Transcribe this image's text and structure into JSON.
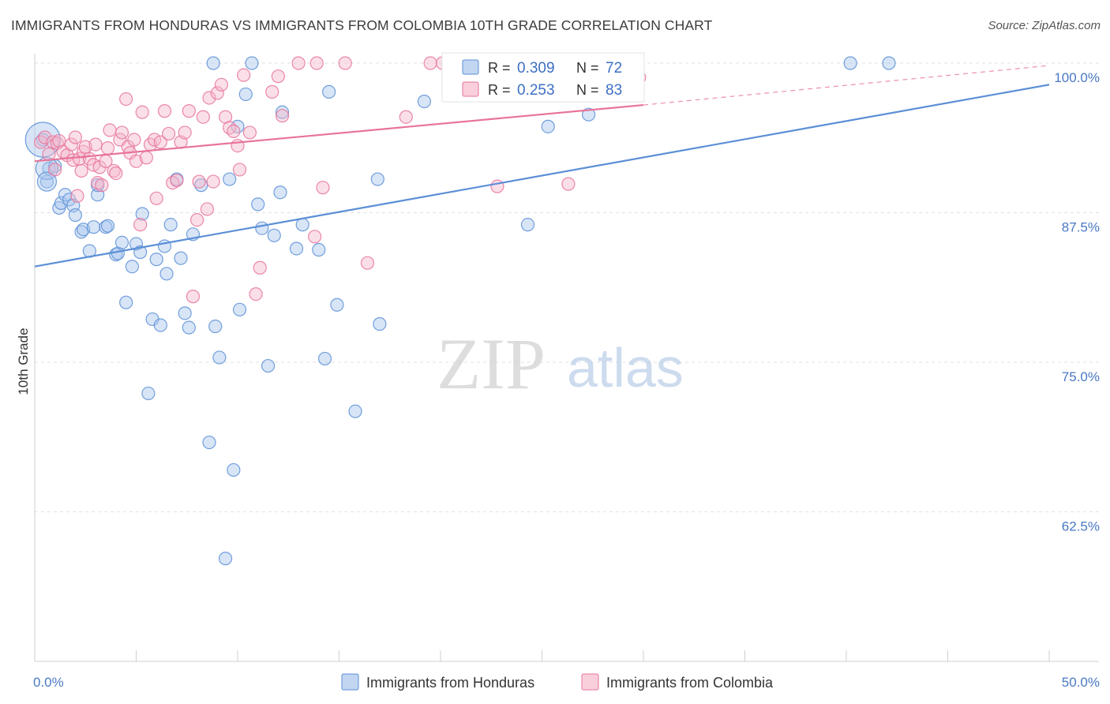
{
  "header": {
    "title": "IMMIGRANTS FROM HONDURAS VS IMMIGRANTS FROM COLOMBIA 10TH GRADE CORRELATION CHART",
    "source": "Source: ZipAtlas.com"
  },
  "watermark": {
    "zip": "ZIP",
    "atlas": "atlas"
  },
  "chart_data": {
    "type": "scatter",
    "title": "IMMIGRANTS FROM HONDURAS VS IMMIGRANTS FROM COLOMBIA 10TH GRADE CORRELATION CHART",
    "xlabel": "",
    "ylabel": "10th Grade",
    "xlim": [
      0,
      50
    ],
    "ylim": [
      50,
      100
    ],
    "x_ticks_labels": [
      "0.0%",
      "50.0%"
    ],
    "y_ticks": [
      62.5,
      75.0,
      87.5,
      100.0
    ],
    "y_tick_labels": [
      "62.5%",
      "75.0%",
      "87.5%",
      "100.0%"
    ],
    "grid": true,
    "legend_top": [
      {
        "r_label": "R = ",
        "r_value": "0.309",
        "n_label": "N = ",
        "n_value": "72",
        "color": "#5b8fd6"
      },
      {
        "r_label": "R = ",
        "r_value": "0.253",
        "n_label": "N = ",
        "n_value": "83",
        "color": "#e8739a"
      }
    ],
    "series": [
      {
        "name": "Immigrants from Honduras",
        "color": "#5b8fd6",
        "fill": "#a9c6ee",
        "trend": {
          "x0": 0,
          "y0": 83.0,
          "x1": 50,
          "y1": 98.2
        },
        "points": [
          [
            0.4,
            93.6
          ],
          [
            0.7,
            91.2
          ],
          [
            0.6,
            90.1
          ],
          [
            1.0,
            91.4
          ],
          [
            1.2,
            87.9
          ],
          [
            1.3,
            88.3
          ],
          [
            1.5,
            89.0
          ],
          [
            1.7,
            88.6
          ],
          [
            1.9,
            88.1
          ],
          [
            2.0,
            87.3
          ],
          [
            2.3,
            85.9
          ],
          [
            2.4,
            86.1
          ],
          [
            2.7,
            84.3
          ],
          [
            2.9,
            86.3
          ],
          [
            3.1,
            89.0
          ],
          [
            3.1,
            89.8
          ],
          [
            3.5,
            86.3
          ],
          [
            3.6,
            86.4
          ],
          [
            4.0,
            84.0
          ],
          [
            4.1,
            84.1
          ],
          [
            4.3,
            85.0
          ],
          [
            4.5,
            80.0
          ],
          [
            4.8,
            83.0
          ],
          [
            5.0,
            84.9
          ],
          [
            5.2,
            84.2
          ],
          [
            5.3,
            87.4
          ],
          [
            5.6,
            72.4
          ],
          [
            5.8,
            78.6
          ],
          [
            6.0,
            83.6
          ],
          [
            6.2,
            78.1
          ],
          [
            6.4,
            84.7
          ],
          [
            6.5,
            82.4
          ],
          [
            6.7,
            86.5
          ],
          [
            7.0,
            90.3
          ],
          [
            7.2,
            83.7
          ],
          [
            7.4,
            79.1
          ],
          [
            7.6,
            77.9
          ],
          [
            7.8,
            85.7
          ],
          [
            8.2,
            89.8
          ],
          [
            8.6,
            68.3
          ],
          [
            8.8,
            100.0
          ],
          [
            8.9,
            78.0
          ],
          [
            9.1,
            75.4
          ],
          [
            9.4,
            58.6
          ],
          [
            9.6,
            90.3
          ],
          [
            9.8,
            66.0
          ],
          [
            10.0,
            94.7
          ],
          [
            10.1,
            79.4
          ],
          [
            10.4,
            97.4
          ],
          [
            10.7,
            100.0
          ],
          [
            11.0,
            88.2
          ],
          [
            11.2,
            86.2
          ],
          [
            11.5,
            74.7
          ],
          [
            11.8,
            85.6
          ],
          [
            12.1,
            89.2
          ],
          [
            12.2,
            95.9
          ],
          [
            12.9,
            84.5
          ],
          [
            13.2,
            86.5
          ],
          [
            14.0,
            84.4
          ],
          [
            14.3,
            75.3
          ],
          [
            14.5,
            97.6
          ],
          [
            14.9,
            79.8
          ],
          [
            15.8,
            70.9
          ],
          [
            16.9,
            90.3
          ],
          [
            17.0,
            78.2
          ],
          [
            19.2,
            96.8
          ],
          [
            24.3,
            86.5
          ],
          [
            25.0,
            100.0
          ],
          [
            25.3,
            94.7
          ],
          [
            27.3,
            95.7
          ],
          [
            40.2,
            100.0
          ],
          [
            42.1,
            100.0
          ]
        ],
        "sizes_big": [
          [
            0.4,
            93.6,
            22
          ],
          [
            0.6,
            91.2,
            14
          ],
          [
            0.6,
            90.1,
            12
          ]
        ]
      },
      {
        "name": "Immigrants from Colombia",
        "color": "#e8739a",
        "fill": "#f5b8cb",
        "trend": {
          "x0": 0,
          "y0": 91.8,
          "x1": 30,
          "y1": 96.5
        },
        "trend_dashed": {
          "x0": 30,
          "y0": 96.5,
          "x1": 50,
          "y1": 99.8
        },
        "points": [
          [
            0.3,
            93.4
          ],
          [
            0.5,
            93.8
          ],
          [
            0.7,
            92.4
          ],
          [
            0.9,
            93.4
          ],
          [
            1.0,
            91.1
          ],
          [
            1.1,
            93.3
          ],
          [
            1.2,
            93.5
          ],
          [
            1.4,
            92.6
          ],
          [
            1.6,
            92.3
          ],
          [
            1.8,
            93.2
          ],
          [
            1.9,
            91.9
          ],
          [
            2.0,
            93.8
          ],
          [
            2.1,
            88.9
          ],
          [
            2.2,
            92.0
          ],
          [
            2.3,
            91.0
          ],
          [
            2.4,
            92.6
          ],
          [
            2.5,
            93.0
          ],
          [
            2.7,
            92.0
          ],
          [
            2.9,
            91.5
          ],
          [
            3.0,
            93.2
          ],
          [
            3.1,
            90.0
          ],
          [
            3.2,
            91.3
          ],
          [
            3.3,
            89.8
          ],
          [
            3.5,
            91.8
          ],
          [
            3.6,
            92.9
          ],
          [
            3.7,
            94.4
          ],
          [
            3.9,
            91.0
          ],
          [
            4.0,
            90.8
          ],
          [
            4.2,
            93.6
          ],
          [
            4.3,
            94.2
          ],
          [
            4.5,
            97.0
          ],
          [
            4.6,
            93.0
          ],
          [
            4.7,
            92.5
          ],
          [
            4.9,
            93.6
          ],
          [
            5.0,
            91.8
          ],
          [
            5.2,
            86.5
          ],
          [
            5.3,
            95.9
          ],
          [
            5.5,
            92.1
          ],
          [
            5.7,
            93.2
          ],
          [
            5.9,
            93.6
          ],
          [
            6.0,
            88.7
          ],
          [
            6.2,
            93.4
          ],
          [
            6.4,
            96.0
          ],
          [
            6.6,
            94.1
          ],
          [
            6.8,
            90.0
          ],
          [
            7.0,
            90.2
          ],
          [
            7.2,
            93.4
          ],
          [
            7.4,
            94.2
          ],
          [
            7.6,
            96.0
          ],
          [
            7.8,
            80.5
          ],
          [
            8.0,
            86.9
          ],
          [
            8.1,
            90.1
          ],
          [
            8.3,
            95.5
          ],
          [
            8.5,
            87.8
          ],
          [
            8.6,
            97.1
          ],
          [
            8.8,
            90.1
          ],
          [
            9.0,
            97.5
          ],
          [
            9.2,
            98.2
          ],
          [
            9.4,
            95.5
          ],
          [
            9.6,
            94.6
          ],
          [
            9.8,
            94.3
          ],
          [
            10.0,
            93.1
          ],
          [
            10.1,
            91.1
          ],
          [
            10.3,
            99.0
          ],
          [
            10.6,
            94.2
          ],
          [
            10.9,
            80.7
          ],
          [
            11.1,
            82.9
          ],
          [
            11.7,
            97.6
          ],
          [
            12.0,
            98.9
          ],
          [
            12.2,
            95.6
          ],
          [
            13.0,
            100.0
          ],
          [
            13.8,
            85.5
          ],
          [
            13.9,
            100.0
          ],
          [
            14.2,
            89.6
          ],
          [
            15.3,
            100.0
          ],
          [
            16.4,
            83.3
          ],
          [
            18.3,
            95.5
          ],
          [
            19.5,
            100.0
          ],
          [
            20.1,
            100.0
          ],
          [
            22.8,
            89.7
          ],
          [
            26.3,
            89.9
          ],
          [
            28.7,
            100.0
          ],
          [
            29.8,
            98.8
          ]
        ]
      }
    ]
  },
  "bottom_legend": [
    {
      "label": "Immigrants from Honduras",
      "color": "#5b8fd6",
      "fill": "#c2d6f2"
    },
    {
      "label": "Immigrants from Colombia",
      "color": "#e8739a",
      "fill": "#f9cfdc"
    }
  ]
}
